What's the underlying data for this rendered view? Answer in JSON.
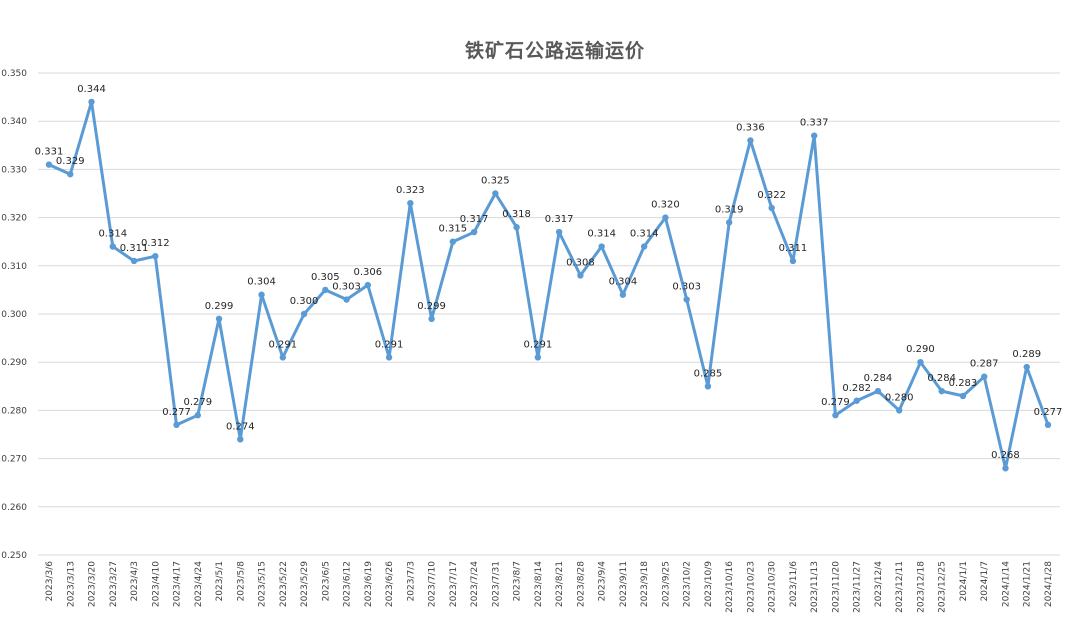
{
  "chart_data": {
    "type": "line",
    "title": "铁矿石公路运输运价",
    "xlabel": "",
    "ylabel": "",
    "ylim": [
      0.25,
      0.35
    ],
    "yticks": [
      "0.250",
      "0.260",
      "0.270",
      "0.280",
      "0.290",
      "0.300",
      "0.310",
      "0.320",
      "0.330",
      "0.340",
      "0.350"
    ],
    "grid": true,
    "legend": "none",
    "line_color": "#5B9BD5",
    "categories": [
      "2023/3/6",
      "2023/3/13",
      "2023/3/20",
      "2023/3/27",
      "2023/4/3",
      "2023/4/10",
      "2023/4/17",
      "2023/4/24",
      "2023/5/1",
      "2023/5/8",
      "2023/5/15",
      "2023/5/22",
      "2023/5/29",
      "2023/6/5",
      "2023/6/12",
      "2023/6/19",
      "2023/6/26",
      "2023/7/3",
      "2023/7/10",
      "2023/7/17",
      "2023/7/24",
      "2023/7/31",
      "2023/8/7",
      "2023/8/14",
      "2023/8/21",
      "2023/8/28",
      "2023/9/4",
      "2023/9/11",
      "2023/9/18",
      "2023/9/25",
      "2023/10/2",
      "2023/10/9",
      "2023/10/16",
      "2023/10/23",
      "2023/10/30",
      "2023/11/6",
      "2023/11/13",
      "2023/11/20",
      "2023/11/27",
      "2023/12/4",
      "2023/12/11",
      "2023/12/18",
      "2023/12/25",
      "2024/1/1",
      "2024/1/7",
      "2024/1/14",
      "2024/1/21",
      "2024/1/28"
    ],
    "series": [
      {
        "values": [
          0.331,
          0.329,
          0.344,
          0.314,
          0.311,
          0.312,
          0.277,
          0.279,
          0.299,
          0.274,
          0.304,
          0.291,
          0.3,
          0.305,
          0.303,
          0.306,
          0.291,
          0.323,
          0.299,
          0.315,
          0.317,
          0.325,
          0.318,
          0.291,
          0.317,
          0.308,
          0.314,
          0.304,
          0.314,
          0.32,
          0.303,
          0.285,
          0.319,
          0.336,
          0.322,
          0.311,
          0.337,
          0.279,
          0.282,
          0.284,
          0.28,
          0.29,
          0.284,
          0.283,
          0.287,
          0.268,
          0.289,
          0.277
        ]
      }
    ]
  }
}
